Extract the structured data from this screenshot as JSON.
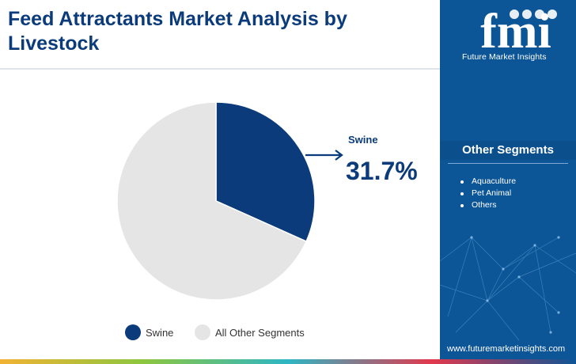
{
  "header": {
    "title": "Feed Attractants Market Analysis by Livestock"
  },
  "brand": {
    "logo_text": "Future Market Insights",
    "logo_letters": "fmi",
    "website": "www.futuremarketinsights.com",
    "primary_color": "#0c5596",
    "title_color": "#0b3b7a"
  },
  "sidebar": {
    "heading": "Other Segments",
    "items": [
      "Aquaculture",
      "Pet Animal",
      "Others"
    ]
  },
  "chart_data": {
    "type": "pie",
    "title": "Feed Attractants Market Analysis by Livestock",
    "slices": [
      {
        "label": "Swine",
        "value": 31.7,
        "color": "#0b3b7a"
      },
      {
        "label": "All Other Segments",
        "value": 68.3,
        "color": "#e5e5e5"
      }
    ],
    "callout": {
      "label": "Swine",
      "value_text": "31.7%"
    },
    "legend": [
      "Swine",
      "All Other Segments"
    ],
    "legend_position": "bottom"
  }
}
